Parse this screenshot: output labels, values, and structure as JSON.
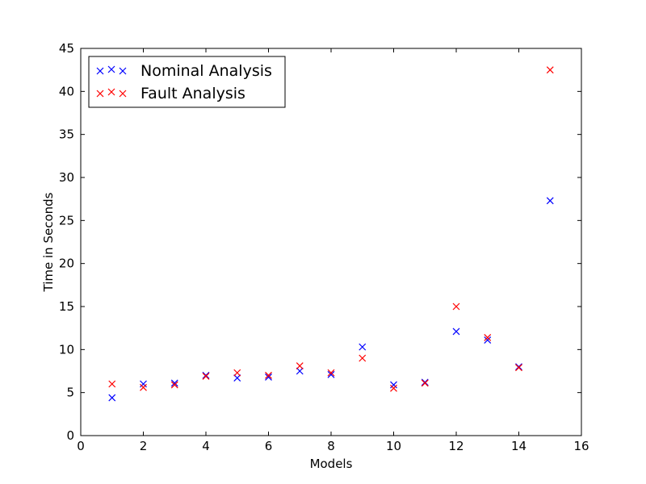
{
  "chart_data": {
    "type": "scatter",
    "title": "",
    "xlabel": "Models",
    "ylabel": "Time in Seconds",
    "xlim": [
      0,
      16
    ],
    "ylim": [
      0,
      45
    ],
    "xticks": [
      "0",
      "2",
      "4",
      "6",
      "8",
      "10",
      "12",
      "14",
      "16"
    ],
    "yticks": [
      "0",
      "5",
      "10",
      "15",
      "20",
      "25",
      "30",
      "35",
      "40",
      "45"
    ],
    "grid": false,
    "legend_position": "top-left",
    "marker": "x",
    "series": [
      {
        "name": "Nominal Analysis",
        "color": "#0000ff",
        "points": [
          [
            1,
            4.4
          ],
          [
            2,
            6.0
          ],
          [
            3,
            6.1
          ],
          [
            4,
            7.0
          ],
          [
            5,
            6.7
          ],
          [
            6,
            6.8
          ],
          [
            7,
            7.5
          ],
          [
            8,
            7.1
          ],
          [
            9,
            10.3
          ],
          [
            10,
            5.9
          ],
          [
            11,
            6.2
          ],
          [
            12,
            12.1
          ],
          [
            13,
            11.1
          ],
          [
            14,
            8.0
          ],
          [
            15,
            27.3
          ]
        ]
      },
      {
        "name": "Fault Analysis",
        "color": "#ff0000",
        "points": [
          [
            1,
            6.0
          ],
          [
            2,
            5.6
          ],
          [
            3,
            5.9
          ],
          [
            4,
            6.9
          ],
          [
            5,
            7.3
          ],
          [
            6,
            7.0
          ],
          [
            7,
            8.1
          ],
          [
            8,
            7.3
          ],
          [
            9,
            9.0
          ],
          [
            10,
            5.5
          ],
          [
            11,
            6.1
          ],
          [
            12,
            15.0
          ],
          [
            13,
            11.4
          ],
          [
            14,
            7.9
          ],
          [
            15,
            42.5
          ]
        ]
      }
    ]
  }
}
